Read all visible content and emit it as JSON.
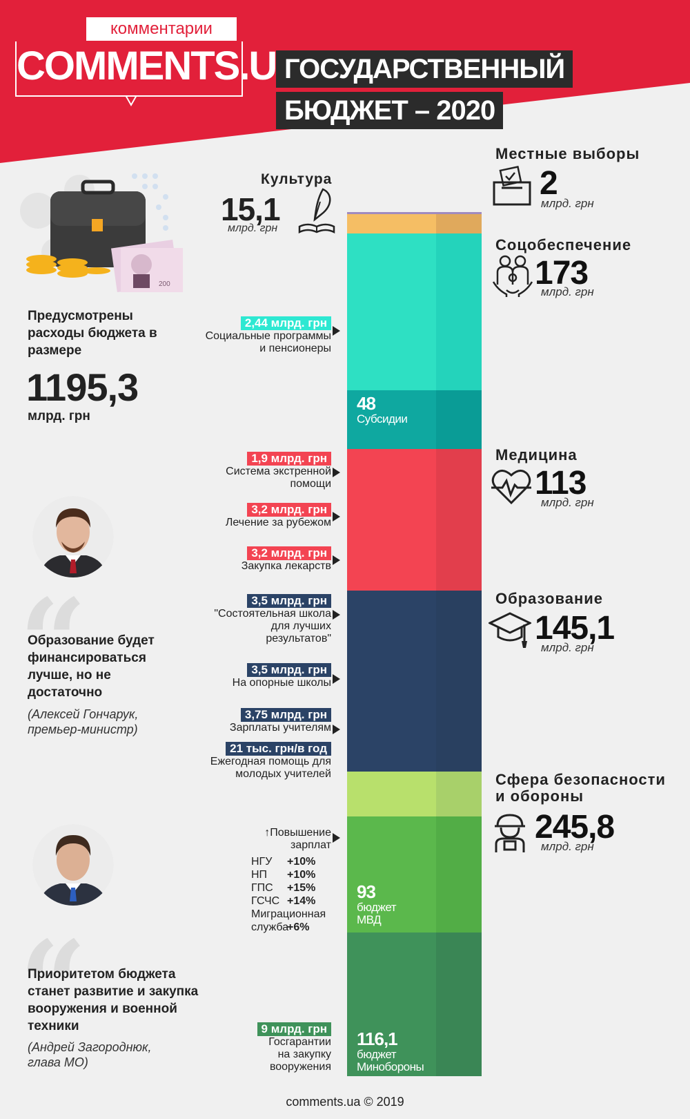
{
  "header": {
    "brand_small": "комментарии",
    "brand_logo": "COMMENTS.UA",
    "title_line1": "ГОСУДАРСТВЕННЫЙ",
    "title_line2": "БЮДЖЕТ – 2020"
  },
  "summary": {
    "text": "Предусмотрены расходы бюджета в размере",
    "value": "1195,3",
    "unit": "млрд. грн",
    "banknote_value": "200"
  },
  "culture": {
    "title": "Культура",
    "value": "15,1",
    "unit": "млрд. грн"
  },
  "categories": {
    "elections": {
      "title": "Местные выборы",
      "value": "2",
      "unit": "млрд. грн"
    },
    "social": {
      "title": "Соцобеспечение",
      "value": "173",
      "unit": "млрд. грн"
    },
    "medicine": {
      "title": "Медицина",
      "value": "113",
      "unit": "млрд. грн"
    },
    "education": {
      "title": "Образование",
      "value": "145,1",
      "unit": "млрд. грн"
    },
    "security": {
      "title_line1": "Сфера безопасности",
      "title_line2": "и обороны",
      "value": "245,8",
      "unit": "млрд. грн"
    }
  },
  "segments": {
    "subsidies": {
      "value": "48",
      "label": "Субсидии"
    },
    "mvd": {
      "value": "93",
      "label_line1": "бюджет",
      "label_line2": "МВД"
    },
    "mod": {
      "value": "116,1",
      "label_line1": "бюджет",
      "label_line2": "Минобороны"
    }
  },
  "callouts": {
    "social_programs": {
      "tag": "2,44 млрд. грн",
      "line1": "Социальные программы",
      "line2": "и пенсионеры"
    },
    "emergency": {
      "tag": "1,9 млрд. грн",
      "line1": "Система экстренной",
      "line2": "помощи"
    },
    "treatment_abroad": {
      "tag": "3,2 млрд. грн",
      "line1": "Лечение за рубежом"
    },
    "medicines": {
      "tag": "3,2 млрд. грн",
      "line1": "Закупка лекарств"
    },
    "rich_school": {
      "tag": "3,5 млрд. грн",
      "line1": "\"Состоятельная школа",
      "line2": "для лучших",
      "line3": "результатов\""
    },
    "base_schools": {
      "tag": "3,5 млрд. грн",
      "line1": "На опорные школы"
    },
    "teacher_salaries": {
      "tag": "3,75 млрд. грн",
      "line1": "Зарплаты учителям"
    },
    "young_teachers": {
      "tag": "21 тыс. грн/в год",
      "line1": "Ежегодная помощь для",
      "line2": "молодых учителей"
    },
    "salary_raise": {
      "line1": "↑Повышение",
      "line2": "зарплат",
      "rows": [
        {
          "name": "НГУ",
          "value": "+10%"
        },
        {
          "name": "НП",
          "value": "+10%"
        },
        {
          "name": "ГПС",
          "value": "+15%"
        },
        {
          "name": "ГСЧС",
          "value": "+14%"
        }
      ],
      "migration_line1": "Миграционная",
      "migration_line2": "служба",
      "migration_value": "+6%"
    },
    "state_guarantees": {
      "tag": "9 млрд. грн",
      "line1": "Госгарантии",
      "line2": "на закупку",
      "line3": "вооружения"
    }
  },
  "quotes": {
    "q1": {
      "text_line1": "Образование будет",
      "text_line2": "финансироваться",
      "text_line3": "лучше, но не",
      "text_line4": "достаточно",
      "author_line1": "(Алексей Гончарук,",
      "author_line2": "премьер-министр)"
    },
    "q2": {
      "text_line1": "Приоритетом бюджета",
      "text_line2": "станет развитие и закупка",
      "text_line3": "вооружения и военной",
      "text_line4": "техники",
      "author_line1": "(Андрей Загороднюк,",
      "author_line2": "глава МО)"
    }
  },
  "footer": "comments.ua © 2019",
  "colors": {
    "red": "#e2203a",
    "culture": "#f5be64",
    "social": "#2ee0c3",
    "subsidies": "#0fa8a0",
    "medicine": "#f34452",
    "education": "#2b4366",
    "security_light": "#b8e06c",
    "mvd": "#5bb84c",
    "mod": "#3f925a",
    "tag_social": "#2ee8d2",
    "tag_medicine": "#f34452",
    "tag_education": "#2b4366",
    "tag_security": "#3f925a"
  }
}
